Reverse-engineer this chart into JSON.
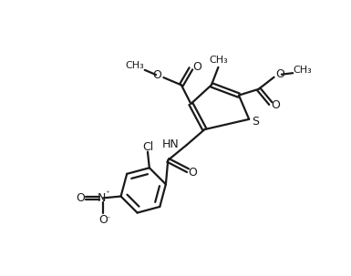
{
  "bg_color": "#ffffff",
  "line_color": "#1a1a1a",
  "line_width": 1.6,
  "fig_width": 3.85,
  "fig_height": 3.03,
  "dpi": 100,
  "xlim": [
    0,
    10
  ],
  "ylim": [
    0,
    8
  ]
}
